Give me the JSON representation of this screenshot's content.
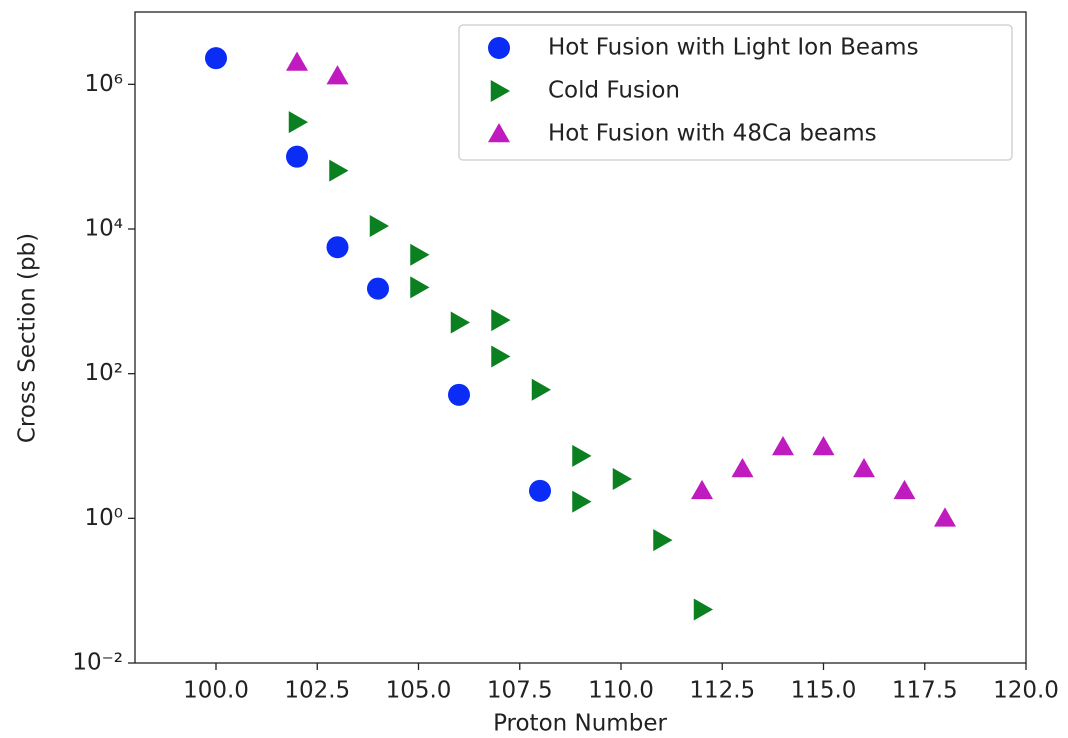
{
  "chart_data": {
    "type": "scatter",
    "xlabel": "Proton Number",
    "ylabel": "Cross Section (pb)",
    "xlim": [
      98,
      120
    ],
    "ylim": [
      0.01,
      10000000
    ],
    "yscale": "log",
    "legend": "upper right",
    "xticks": [
      {
        "value": 100,
        "label": "100.0"
      },
      {
        "value": 102.5,
        "label": "102.5"
      },
      {
        "value": 105,
        "label": "105.0"
      },
      {
        "value": 107.5,
        "label": "107.5"
      },
      {
        "value": 110,
        "label": "110.0"
      },
      {
        "value": 112.5,
        "label": "112.5"
      },
      {
        "value": 115,
        "label": "115.0"
      },
      {
        "value": 117.5,
        "label": "117.5"
      },
      {
        "value": 120,
        "label": "120.0"
      }
    ],
    "yticks": [
      {
        "value": 0.01,
        "label": "10⁻²"
      },
      {
        "value": 1,
        "label": "10⁰"
      },
      {
        "value": 100,
        "label": "10²"
      },
      {
        "value": 10000,
        "label": "10⁴"
      },
      {
        "value": 1000000,
        "label": "10⁶"
      }
    ],
    "series": [
      {
        "name": "Hot Fusion with Light Ion Beams",
        "color": "#0a2cf5",
        "marker": "circle",
        "x": [
          100,
          102,
          103,
          104,
          106,
          108
        ],
        "values": [
          2300000,
          100000,
          5600,
          1500,
          51,
          2.4
        ]
      },
      {
        "name": "Cold Fusion",
        "color": "#0b8020",
        "marker": "triangle-right",
        "x": [
          102,
          103,
          104,
          105,
          105,
          106,
          107,
          107,
          108,
          109,
          109,
          110,
          111,
          112
        ],
        "values": [
          300000,
          64000,
          11000,
          4400,
          1560,
          510,
          550,
          173,
          60,
          7.3,
          1.7,
          3.5,
          0.5,
          0.055
        ]
      },
      {
        "name": "Hot Fusion with 48Ca beams",
        "color": "#bf1bbf",
        "marker": "triangle-up",
        "x": [
          102,
          103,
          112,
          113,
          114,
          115,
          116,
          117,
          118
        ],
        "values": [
          2000000,
          1300000,
          2.4,
          4.8,
          9.7,
          9.7,
          4.8,
          2.4,
          1.0
        ]
      }
    ]
  }
}
